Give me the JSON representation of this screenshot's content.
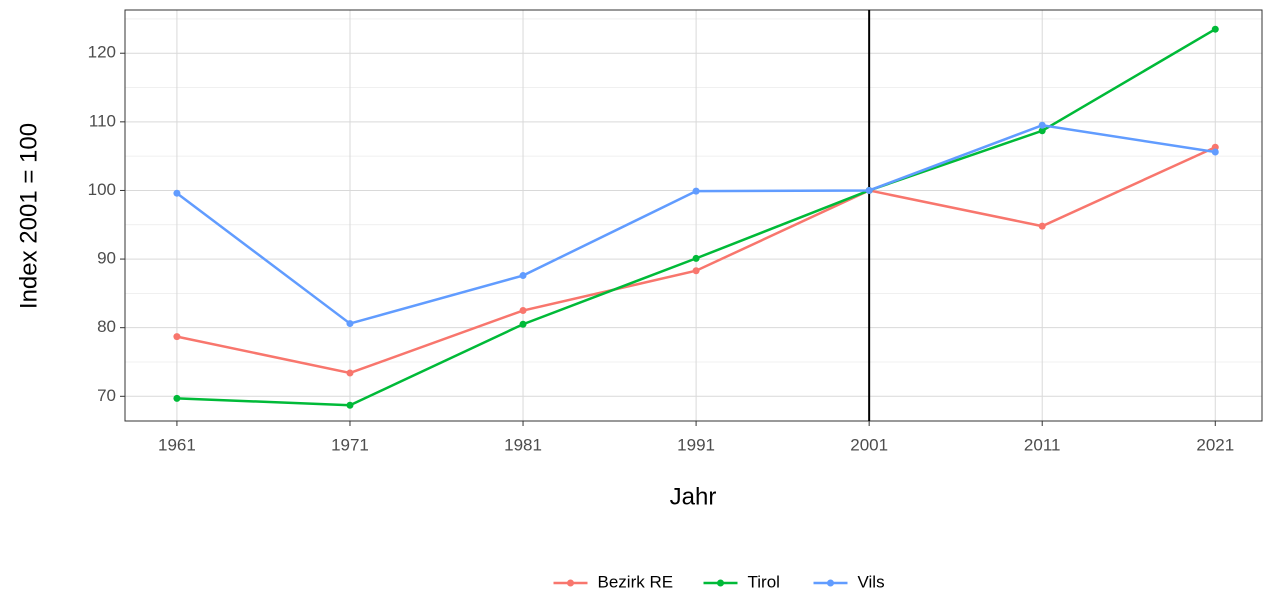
{
  "chart_data": {
    "type": "line",
    "x_label": "Jahr",
    "y_label": "Index 2001 = 100",
    "x": [
      1961,
      1971,
      1981,
      1991,
      2001,
      2011,
      2021
    ],
    "series": [
      {
        "name": "Bezirk RE",
        "color": "#F8766D",
        "values": [
          78.7,
          73.4,
          82.5,
          88.3,
          100,
          94.8,
          106.3
        ]
      },
      {
        "name": "Tirol",
        "color": "#00BA38",
        "values": [
          69.7,
          68.7,
          80.5,
          90.1,
          100,
          108.7,
          123.5
        ]
      },
      {
        "name": "Vils",
        "color": "#619CFF",
        "values": [
          99.6,
          80.6,
          87.6,
          99.9,
          100,
          109.5,
          105.6
        ]
      }
    ],
    "xlim": [
      1958,
      2023.7
    ],
    "xticks": [
      1961,
      1971,
      1981,
      1991,
      2001,
      2011,
      2021
    ],
    "ylim": [
      66.4,
      126.3
    ],
    "yticks": [
      70,
      80,
      90,
      100,
      110,
      120
    ],
    "minor_yticks": [
      75,
      85,
      95,
      105,
      115,
      125
    ],
    "vline": 2001,
    "grid": true,
    "legend": "bottom"
  }
}
